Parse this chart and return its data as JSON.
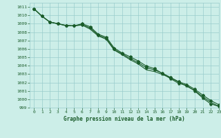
{
  "title": "Graphe pression niveau de la mer (hPa)",
  "background_color": "#cceee8",
  "grid_color": "#99cccc",
  "line_color": "#1a5c2a",
  "xlim": [
    -0.5,
    23
  ],
  "ylim": [
    999,
    1011.5
  ],
  "xticks": [
    0,
    1,
    2,
    3,
    4,
    5,
    6,
    7,
    8,
    9,
    10,
    11,
    12,
    13,
    14,
    15,
    16,
    17,
    18,
    19,
    20,
    21,
    22,
    23
  ],
  "yticks": [
    999,
    1000,
    1001,
    1002,
    1003,
    1004,
    1005,
    1006,
    1007,
    1008,
    1009,
    1010,
    1011
  ],
  "series1_x": [
    0,
    1,
    2,
    3,
    4,
    5,
    6,
    7,
    8,
    9,
    10,
    11,
    12,
    13,
    14,
    15,
    16,
    17,
    18,
    19,
    20,
    21,
    22,
    23
  ],
  "series1_y": [
    1010.8,
    1009.9,
    1009.2,
    1009.0,
    1008.8,
    1008.75,
    1008.85,
    1008.35,
    1007.55,
    1007.15,
    1005.85,
    1005.3,
    1004.7,
    1004.2,
    1003.5,
    1003.3,
    1002.95,
    1002.55,
    1002.05,
    1001.55,
    1001.05,
    1000.3,
    999.65,
    999.15
  ],
  "series2_x": [
    0,
    1,
    2,
    3,
    4,
    5,
    6,
    7,
    8,
    9,
    10,
    11,
    12,
    13,
    14,
    15,
    16,
    17,
    18,
    19,
    20,
    21,
    22,
    23
  ],
  "series2_y": [
    1010.8,
    1009.9,
    1009.2,
    1009.0,
    1008.75,
    1008.75,
    1009.0,
    1008.65,
    1007.75,
    1007.4,
    1006.1,
    1005.5,
    1005.05,
    1004.55,
    1003.95,
    1003.65,
    1003.05,
    1002.45,
    1001.9,
    1001.65,
    1001.0,
    1000.15,
    999.45,
    999.15
  ],
  "series3_x": [
    0,
    1,
    2,
    3,
    4,
    5,
    6,
    7,
    8,
    9,
    10,
    11,
    12,
    13,
    14,
    15,
    16,
    17,
    18,
    19,
    20,
    21,
    22,
    23
  ],
  "series3_y": [
    1010.8,
    1009.9,
    1009.2,
    1009.0,
    1008.8,
    1008.75,
    1008.9,
    1008.5,
    1007.65,
    1007.25,
    1005.95,
    1005.4,
    1004.85,
    1004.35,
    1003.75,
    1003.5,
    1003.1,
    1002.6,
    1002.1,
    1001.75,
    1001.2,
    1000.5,
    999.85,
    999.35
  ]
}
